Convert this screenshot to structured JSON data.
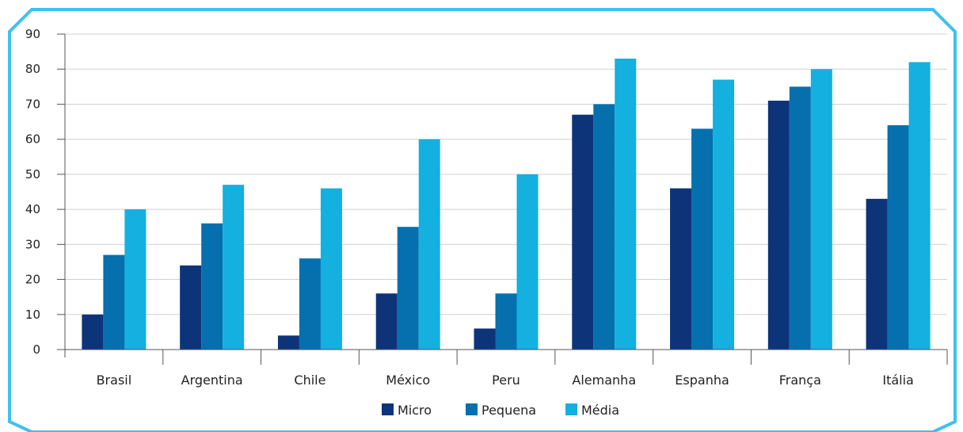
{
  "chart_data": {
    "type": "bar",
    "categories": [
      "Brasil",
      "Argentina",
      "Chile",
      "México",
      "Peru",
      "Alemanha",
      "Espanha",
      "França",
      "Itália"
    ],
    "series": [
      {
        "name": "Micro",
        "color": "#0d3479",
        "values": [
          10,
          24,
          4,
          16,
          6,
          67,
          46,
          71,
          43
        ]
      },
      {
        "name": "Pequena",
        "color": "#0570ad",
        "values": [
          27,
          36,
          26,
          35,
          16,
          70,
          63,
          75,
          64
        ]
      },
      {
        "name": "Média",
        "color": "#13b0e0",
        "values": [
          40,
          47,
          46,
          60,
          50,
          83,
          77,
          80,
          82
        ]
      }
    ],
    "ylim": [
      0,
      90
    ],
    "yticks": [
      0,
      10,
      20,
      30,
      40,
      50,
      60,
      70,
      80,
      90
    ],
    "grid": true,
    "legend_position": "bottom-center",
    "frame_color": "#3fc1ec",
    "title": "",
    "xlabel": "",
    "ylabel": ""
  }
}
